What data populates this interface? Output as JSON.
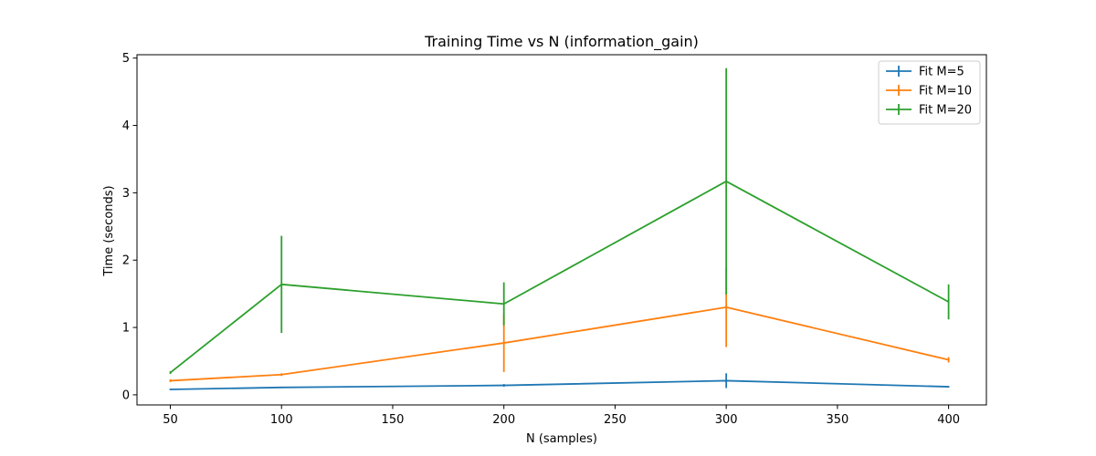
{
  "chart_data": {
    "type": "line",
    "title": "Training Time vs N (information_gain)",
    "xlabel": "N (samples)",
    "ylabel": "Time (seconds)",
    "x": [
      50,
      100,
      200,
      300,
      400
    ],
    "xlim": [
      35,
      417
    ],
    "ylim": [
      -0.15,
      5.05
    ],
    "xticks": [
      50,
      100,
      150,
      200,
      250,
      300,
      350,
      400
    ],
    "yticks": [
      0,
      1,
      2,
      3,
      4,
      5
    ],
    "grid": false,
    "legend_position": "top-right",
    "series": [
      {
        "name": "Fit M=5",
        "color": "#1f77b4",
        "values": [
          0.08,
          0.11,
          0.14,
          0.21,
          0.12
        ],
        "errors": [
          0.01,
          0.01,
          0.02,
          0.11,
          0.01
        ]
      },
      {
        "name": "Fit M=10",
        "color": "#ff7f0e",
        "values": [
          0.21,
          0.3,
          0.77,
          1.3,
          0.52
        ],
        "errors": [
          0.02,
          0.02,
          0.43,
          0.59,
          0.04
        ]
      },
      {
        "name": "Fit M=20",
        "color": "#2ca02c",
        "values": [
          0.33,
          1.64,
          1.35,
          3.17,
          1.38
        ],
        "errors": [
          0.02,
          0.72,
          0.32,
          1.68,
          0.26
        ]
      }
    ]
  }
}
